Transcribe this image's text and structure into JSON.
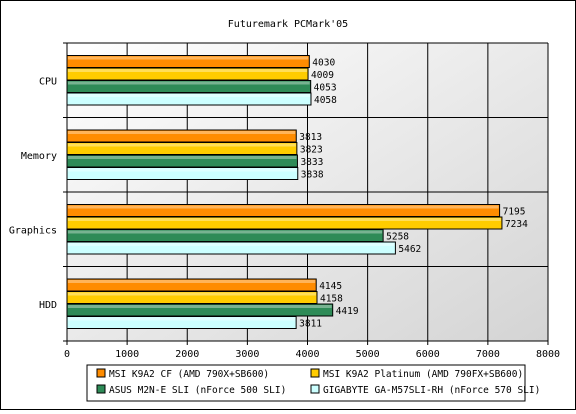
{
  "chart_data": {
    "type": "bar",
    "orientation": "horizontal",
    "title": "Futuremark PCMark'05",
    "categories": [
      "CPU",
      "Memory",
      "Graphics",
      "HDD"
    ],
    "series": [
      {
        "name": "MSI K9A2 CF (AMD 790X+SB600)",
        "color": "#ff8c00",
        "values": [
          4030,
          3813,
          7195,
          4145
        ]
      },
      {
        "name": "MSI K9A2 Platinum (AMD 790FX+SB600)",
        "color": "#ffcc00",
        "values": [
          4009,
          3823,
          7234,
          4158
        ]
      },
      {
        "name": "ASUS M2N-E SLI (nForce 500 SLI)",
        "color": "#2e8b57",
        "values": [
          4053,
          3833,
          5258,
          4419
        ]
      },
      {
        "name": "GIGABYTE GA-M57SLI-RH (nForce 570 SLI)",
        "color": "#ccffff",
        "values": [
          4058,
          3838,
          5462,
          3811
        ]
      }
    ],
    "xlim": [
      0,
      8000
    ],
    "xticks": [
      0,
      1000,
      2000,
      3000,
      4000,
      5000,
      6000,
      7000,
      8000
    ],
    "grid": true,
    "legend_position": "bottom"
  }
}
